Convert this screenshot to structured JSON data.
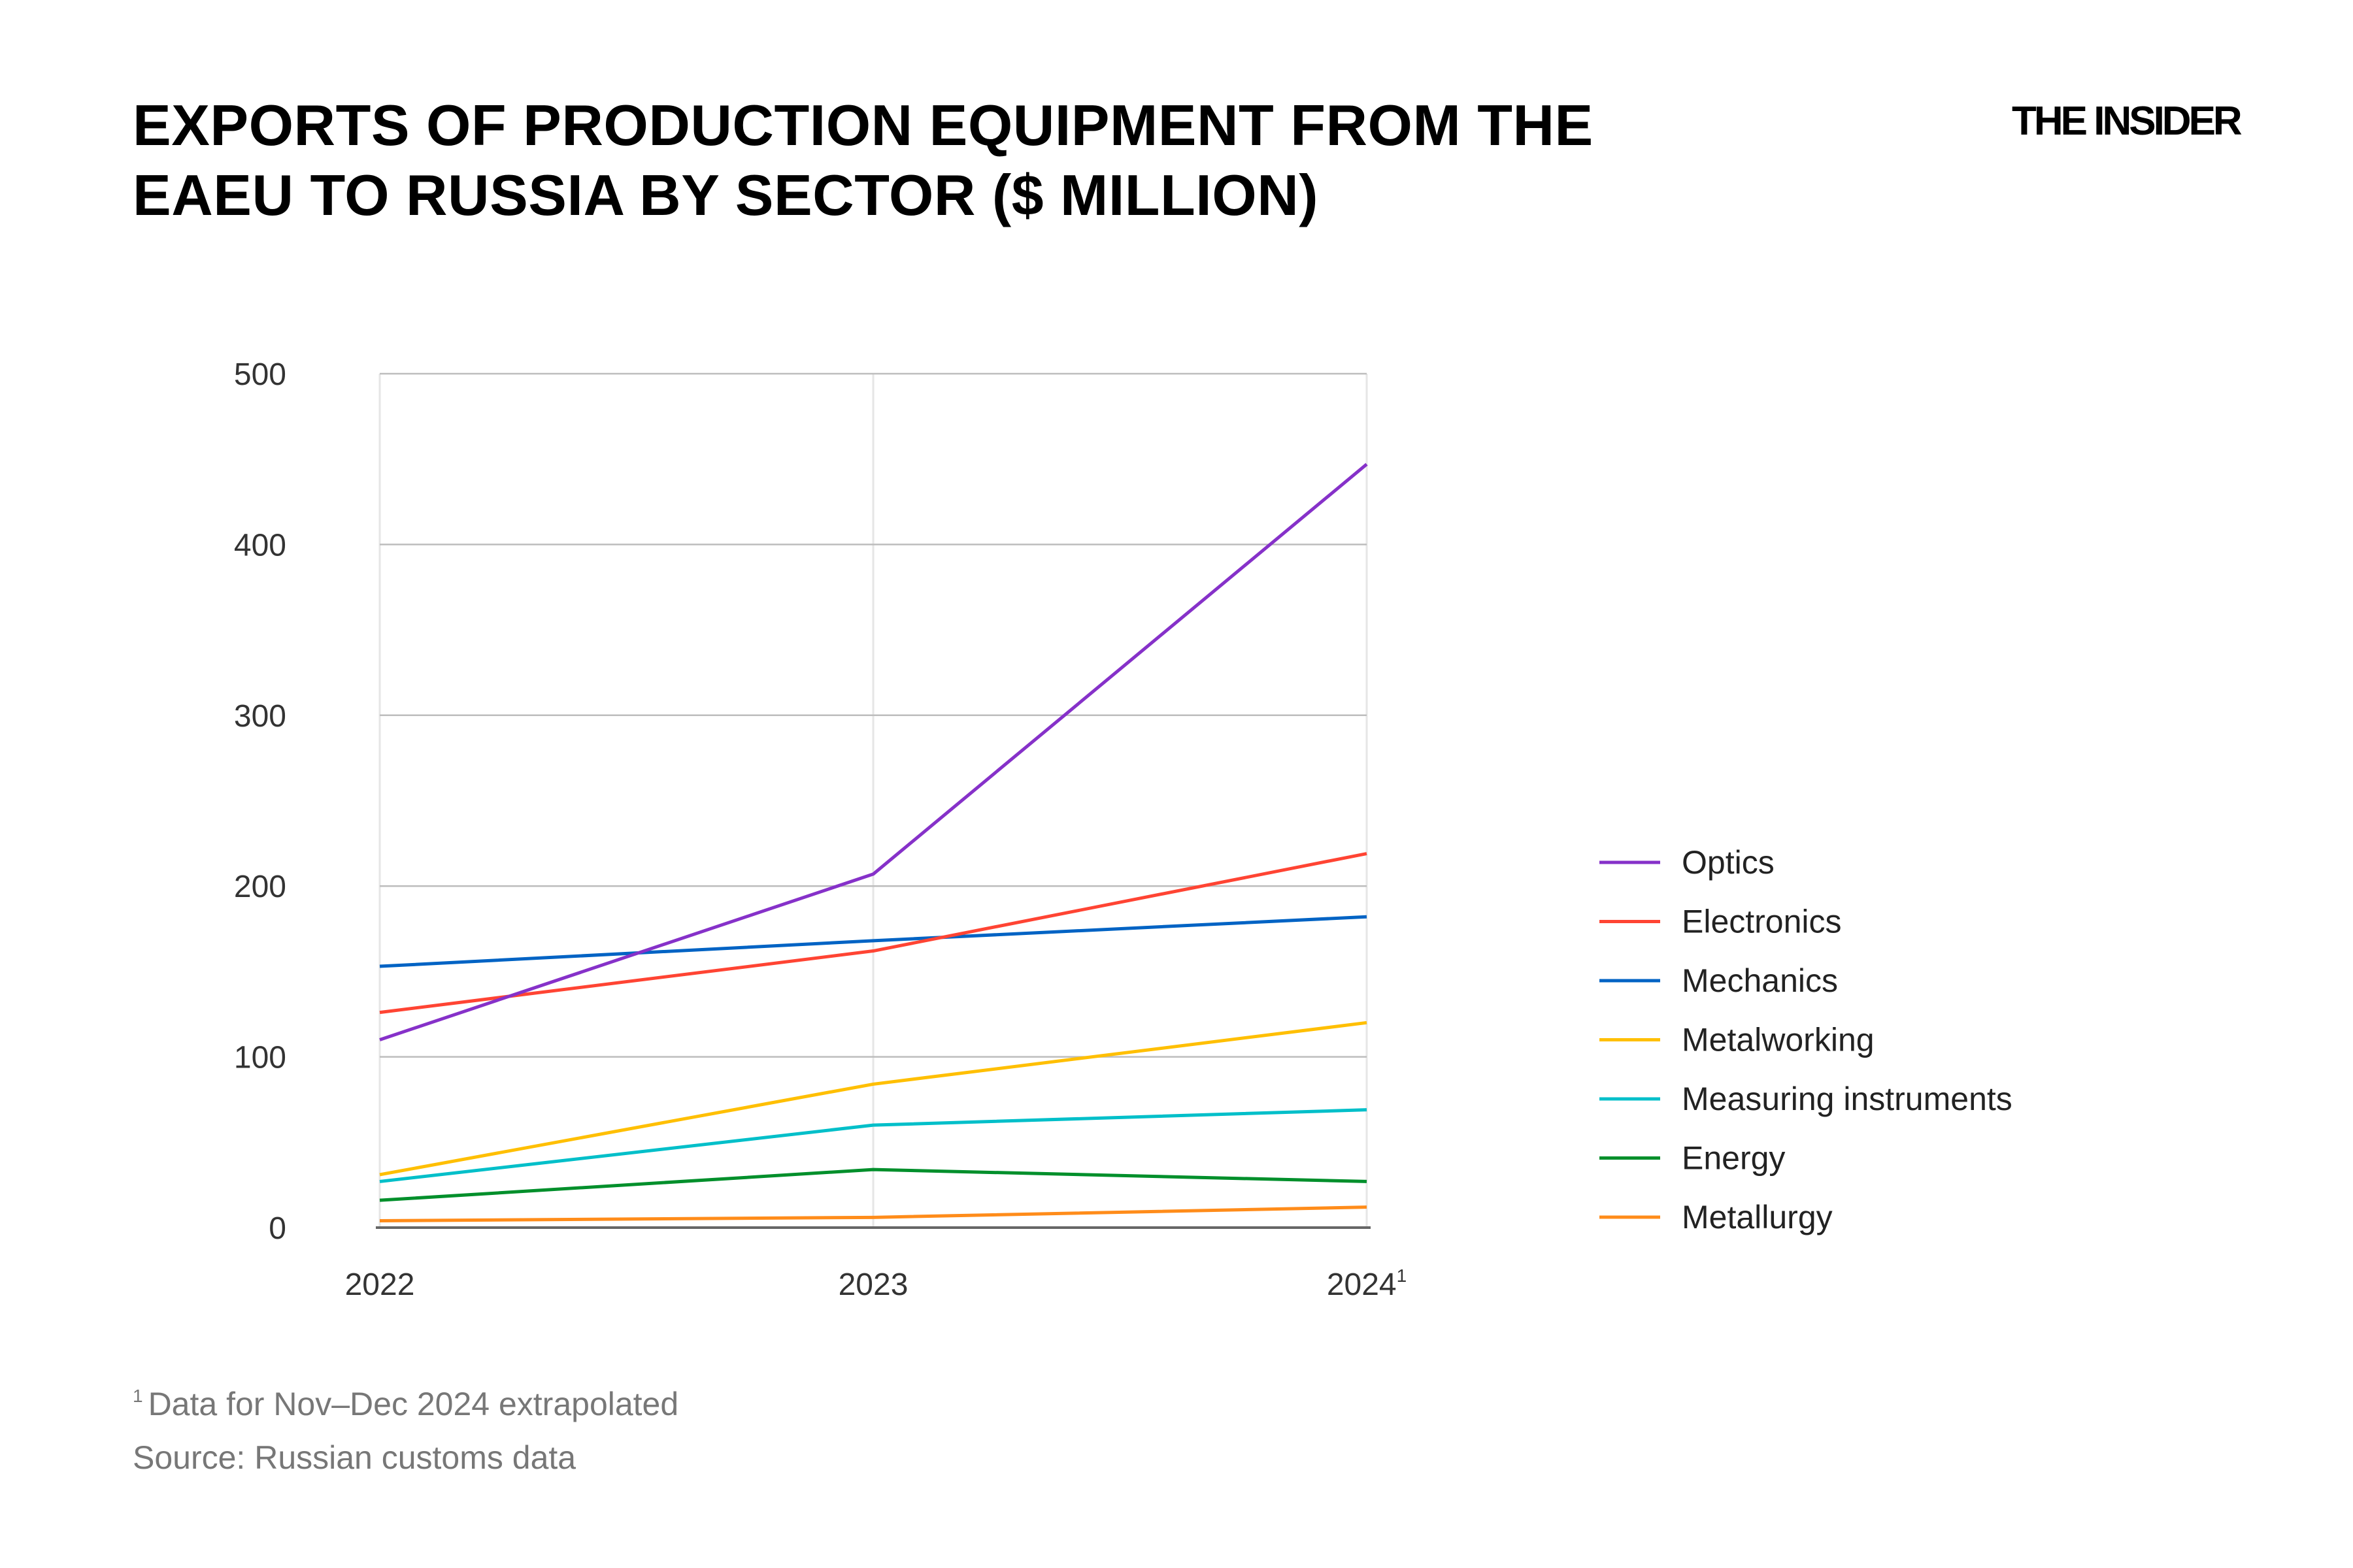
{
  "title": "EXPORTS OF PRODUCTION EQUIPMENT FROM THE EAEU TO RUSSIA BY SECTOR ($ MILLION)",
  "logo": "THE INSIDER",
  "footnote": {
    "marker": "1",
    "text": "Data for Nov–Dec 2024 extrapolated"
  },
  "source": "Source: Russian customs data",
  "chart_data": {
    "type": "line",
    "title": "EXPORTS OF PRODUCTION EQUIPMENT FROM THE EAEU TO RUSSIA BY SECTOR ($ MILLION)",
    "categories": [
      "2022",
      "2023",
      "2024"
    ],
    "category_superscripts": [
      "",
      "",
      "1"
    ],
    "ylim": [
      0,
      500
    ],
    "yticks": [
      0,
      100,
      200,
      300,
      400,
      500
    ],
    "grid": true,
    "legend_position": "right",
    "series": [
      {
        "name": "Optics",
        "color": "#8631c9",
        "values": [
          110,
          207,
          447
        ]
      },
      {
        "name": "Electronics",
        "color": "#ff4433",
        "values": [
          126,
          162,
          219
        ]
      },
      {
        "name": "Mechanics",
        "color": "#0063c4",
        "values": [
          153,
          168,
          182
        ]
      },
      {
        "name": "Metalworking",
        "color": "#ffbf00",
        "values": [
          31,
          84,
          120
        ]
      },
      {
        "name": "Measuring instruments",
        "color": "#00bfc9",
        "values": [
          27,
          60,
          69
        ]
      },
      {
        "name": "Energy",
        "color": "#008f2b",
        "values": [
          16,
          34,
          27
        ]
      },
      {
        "name": "Metallurgy",
        "color": "#ff8c1a",
        "values": [
          4,
          6,
          12
        ]
      }
    ]
  }
}
